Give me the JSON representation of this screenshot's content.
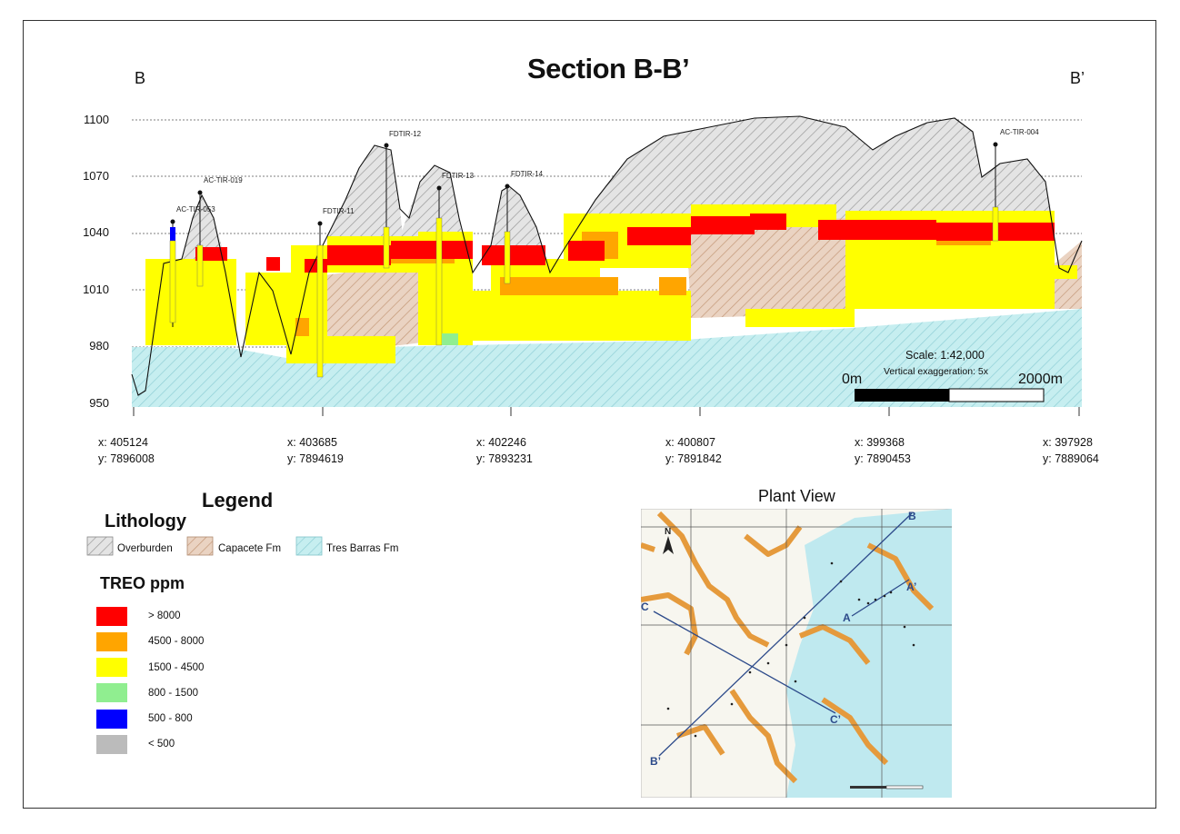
{
  "title": "Section B-B’",
  "section_ends": {
    "left": "B",
    "right": "B’"
  },
  "y_axis": {
    "ticks": [
      "1100",
      "1070",
      "1040",
      "1010",
      "980",
      "950"
    ]
  },
  "x_coords": [
    {
      "x": "x:  405124",
      "y": "y:  7896008"
    },
    {
      "x": "x:  403685",
      "y": "y:  7894619"
    },
    {
      "x": "x:  402246",
      "y": "y:  7893231"
    },
    {
      "x": "x:  400807",
      "y": "y:  7891842"
    },
    {
      "x": "x:  399368",
      "y": "y:  7890453"
    },
    {
      "x": "x:  397928",
      "y": "y:  7889064"
    }
  ],
  "drillholes": [
    "AC-TIR-053",
    "AC-TIR-019",
    "FDTIR-11",
    "FDTIR-12",
    "FDTIR-13",
    "FDTIR-14",
    "AC-TIR-004"
  ],
  "scale": {
    "text": "Scale:  1:42,000",
    "vertical": "Vertical exaggeration: 5x",
    "start": "0m",
    "end": "2000m"
  },
  "legend": {
    "title": "Legend",
    "lithology_title": "Lithology",
    "lithology": [
      {
        "label": "Overburden",
        "color": "#cfcfcf"
      },
      {
        "label": "Capacete Fm",
        "color": "#d9b49c"
      },
      {
        "label": "Tres Barras Fm",
        "color": "#bde6ea"
      }
    ],
    "treo_title": "TREO ppm",
    "treo": [
      {
        "label": "> 8000",
        "color": "#ff0000"
      },
      {
        "label": "4500 - 8000",
        "color": "#ffa500"
      },
      {
        "label": "1500 - 4500",
        "color": "#ffff00"
      },
      {
        "label": "800 - 1500",
        "color": "#90ee90"
      },
      {
        "label": "500 - 800",
        "color": "#0000ff"
      },
      {
        "label": "< 500",
        "color": "#bbbbbb"
      }
    ]
  },
  "plan_view": {
    "title": "Plant View",
    "north": "N",
    "lines": [
      {
        "start": "B",
        "end": "B’"
      },
      {
        "start": "A",
        "end": "A’"
      },
      {
        "start": "C",
        "end": "C’"
      }
    ]
  }
}
